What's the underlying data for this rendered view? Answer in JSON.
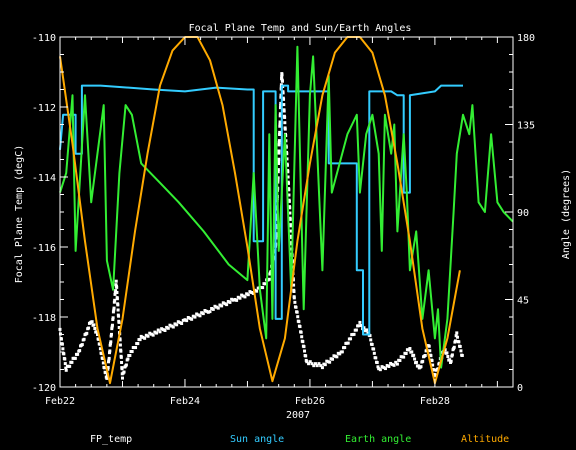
{
  "chart_data": {
    "type": "line",
    "title": "Focal Plane Temp and Sun/Earth Angles",
    "xlabel": "2007",
    "ylabel_left": "Focal Plane Temp (degC)",
    "ylabel_right": "Angle (degrees)",
    "x_ticks": [
      {
        "day": 22,
        "label": "Feb22"
      },
      {
        "day": 24,
        "label": "Feb24"
      },
      {
        "day": 26,
        "label": "Feb26"
      },
      {
        "day": 28,
        "label": "Feb28"
      }
    ],
    "xlim": [
      22,
      29.25
    ],
    "ylim_left": [
      -120,
      -110
    ],
    "yticks_left": [
      "-110",
      "-112",
      "-114",
      "-116",
      "-118",
      "-120"
    ],
    "ylim_right": [
      0,
      180
    ],
    "yticks_right": [
      "180",
      "135",
      "90",
      "45",
      "0"
    ],
    "series": [
      {
        "name": "FP_temp",
        "axis": "left",
        "color": "#ffffff",
        "style": "dots",
        "points": [
          [
            22.0,
            -118.4
          ],
          [
            22.1,
            -119.5
          ],
          [
            22.3,
            -119.0
          ],
          [
            22.5,
            -118.1
          ],
          [
            22.6,
            -118.5
          ],
          [
            22.75,
            -119.8
          ],
          [
            22.85,
            -118.0
          ],
          [
            22.9,
            -117.0
          ],
          [
            23.0,
            -119.7
          ],
          [
            23.1,
            -119.1
          ],
          [
            23.3,
            -118.6
          ],
          [
            23.6,
            -118.4
          ],
          [
            24.0,
            -118.1
          ],
          [
            24.4,
            -117.8
          ],
          [
            24.8,
            -117.5
          ],
          [
            25.2,
            -117.2
          ],
          [
            25.35,
            -116.9
          ],
          [
            25.45,
            -116.0
          ],
          [
            25.55,
            -111.0
          ],
          [
            25.65,
            -114.0
          ],
          [
            25.75,
            -117.5
          ],
          [
            25.85,
            -118.4
          ],
          [
            25.95,
            -119.3
          ],
          [
            26.2,
            -119.4
          ],
          [
            26.5,
            -119.0
          ],
          [
            26.8,
            -118.2
          ],
          [
            26.95,
            -118.5
          ],
          [
            27.1,
            -119.5
          ],
          [
            27.4,
            -119.3
          ],
          [
            27.6,
            -118.9
          ],
          [
            27.75,
            -119.5
          ],
          [
            27.9,
            -118.8
          ],
          [
            28.0,
            -119.7
          ],
          [
            28.15,
            -118.9
          ],
          [
            28.25,
            -119.3
          ],
          [
            28.35,
            -118.5
          ],
          [
            28.45,
            -119.2
          ]
        ]
      },
      {
        "name": "Sun angle",
        "axis": "right",
        "color": "#33ccff",
        "style": "line",
        "points": [
          [
            22.0,
            122
          ],
          [
            22.05,
            140
          ],
          [
            22.25,
            140
          ],
          [
            22.25,
            120
          ],
          [
            22.35,
            120
          ],
          [
            22.35,
            155
          ],
          [
            22.65,
            155
          ],
          [
            22.65,
            155
          ],
          [
            23.5,
            153
          ],
          [
            24.0,
            152
          ],
          [
            24.5,
            154
          ],
          [
            25.0,
            153
          ],
          [
            25.1,
            153
          ],
          [
            25.1,
            75
          ],
          [
            25.25,
            75
          ],
          [
            25.25,
            152
          ],
          [
            25.45,
            152
          ],
          [
            25.45,
            35
          ],
          [
            25.55,
            35
          ],
          [
            25.55,
            155
          ],
          [
            25.65,
            155
          ],
          [
            25.65,
            152
          ],
          [
            26.3,
            152
          ],
          [
            26.3,
            115
          ],
          [
            26.75,
            115
          ],
          [
            26.75,
            60
          ],
          [
            26.85,
            60
          ],
          [
            26.85,
            27
          ],
          [
            26.95,
            27
          ],
          [
            26.95,
            152
          ],
          [
            27.3,
            152
          ],
          [
            27.4,
            150
          ],
          [
            27.5,
            150
          ],
          [
            27.5,
            100
          ],
          [
            27.6,
            100
          ],
          [
            27.6,
            150
          ],
          [
            28.0,
            152
          ],
          [
            28.1,
            155
          ],
          [
            28.45,
            155
          ]
        ]
      },
      {
        "name": "Earth angle",
        "axis": "right",
        "color": "#33ee33",
        "style": "line",
        "points": [
          [
            22.0,
            100
          ],
          [
            22.1,
            110
          ],
          [
            22.2,
            150
          ],
          [
            22.25,
            70
          ],
          [
            22.4,
            150
          ],
          [
            22.5,
            95
          ],
          [
            22.7,
            145
          ],
          [
            22.75,
            65
          ],
          [
            22.85,
            50
          ],
          [
            22.95,
            110
          ],
          [
            23.05,
            145
          ],
          [
            23.15,
            140
          ],
          [
            23.3,
            115
          ],
          [
            23.6,
            105
          ],
          [
            23.9,
            95
          ],
          [
            24.3,
            80
          ],
          [
            24.7,
            63
          ],
          [
            25.0,
            55
          ],
          [
            25.1,
            110
          ],
          [
            25.2,
            50
          ],
          [
            25.3,
            25
          ],
          [
            25.35,
            130
          ],
          [
            25.4,
            35
          ],
          [
            25.45,
            145
          ],
          [
            25.5,
            70
          ],
          [
            25.6,
            130
          ],
          [
            25.7,
            50
          ],
          [
            25.8,
            175
          ],
          [
            25.9,
            40
          ],
          [
            26.0,
            150
          ],
          [
            26.05,
            170
          ],
          [
            26.2,
            60
          ],
          [
            26.3,
            160
          ],
          [
            26.35,
            100
          ],
          [
            26.6,
            130
          ],
          [
            26.75,
            140
          ],
          [
            26.8,
            100
          ],
          [
            26.9,
            130
          ],
          [
            27.0,
            140
          ],
          [
            27.1,
            120
          ],
          [
            27.15,
            70
          ],
          [
            27.2,
            140
          ],
          [
            27.3,
            120
          ],
          [
            27.35,
            135
          ],
          [
            27.4,
            80
          ],
          [
            27.5,
            130
          ],
          [
            27.55,
            100
          ],
          [
            27.6,
            60
          ],
          [
            27.7,
            80
          ],
          [
            27.8,
            35
          ],
          [
            27.9,
            60
          ],
          [
            28.0,
            25
          ],
          [
            28.05,
            40
          ],
          [
            28.1,
            10
          ],
          [
            28.2,
            35
          ],
          [
            28.3,
            90
          ],
          [
            28.35,
            120
          ],
          [
            28.45,
            140
          ],
          [
            28.55,
            130
          ],
          [
            28.6,
            145
          ],
          [
            28.7,
            95
          ],
          [
            28.8,
            90
          ],
          [
            28.9,
            130
          ],
          [
            29.0,
            95
          ],
          [
            29.1,
            90
          ],
          [
            29.25,
            85
          ]
        ]
      },
      {
        "name": "Altitude",
        "axis": "right",
        "color": "#ffaa00",
        "style": "line",
        "points": [
          [
            22.0,
            170
          ],
          [
            22.2,
            125
          ],
          [
            22.4,
            75
          ],
          [
            22.6,
            30
          ],
          [
            22.8,
            2
          ],
          [
            23.0,
            35
          ],
          [
            23.2,
            80
          ],
          [
            23.4,
            120
          ],
          [
            23.6,
            155
          ],
          [
            23.8,
            173
          ],
          [
            24.0,
            180
          ],
          [
            24.2,
            180
          ],
          [
            24.4,
            168
          ],
          [
            24.6,
            145
          ],
          [
            24.8,
            110
          ],
          [
            25.0,
            72
          ],
          [
            25.2,
            30
          ],
          [
            25.4,
            3
          ],
          [
            25.6,
            25
          ],
          [
            25.8,
            75
          ],
          [
            26.0,
            115
          ],
          [
            26.2,
            150
          ],
          [
            26.4,
            172
          ],
          [
            26.6,
            180
          ],
          [
            26.8,
            180
          ],
          [
            27.0,
            172
          ],
          [
            27.2,
            150
          ],
          [
            27.4,
            115
          ],
          [
            27.6,
            75
          ],
          [
            27.8,
            30
          ],
          [
            28.0,
            2
          ],
          [
            28.2,
            25
          ],
          [
            28.4,
            60
          ]
        ]
      }
    ]
  }
}
